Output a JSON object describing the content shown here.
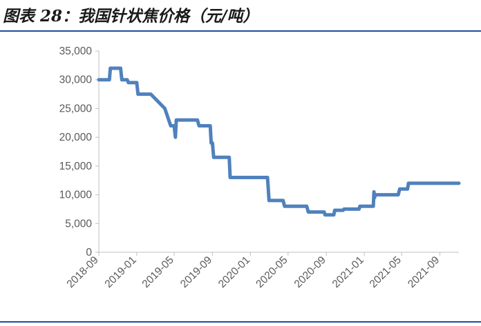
{
  "page": {
    "title": "图表 28：我国针状焦价格（元/吨）",
    "accent_color": "#1f4e9e",
    "series_color": "#4f81bd"
  },
  "chart_data": {
    "type": "line",
    "title": "",
    "xlabel": "",
    "ylabel": "",
    "ylim": [
      0,
      35000
    ],
    "y_ticks": [
      0,
      5000,
      10000,
      15000,
      20000,
      25000,
      30000,
      35000
    ],
    "y_tick_labels": [
      "0",
      "5,000",
      "10,000",
      "15,000",
      "20,000",
      "25,000",
      "30,000",
      "35,000"
    ],
    "x_range": [
      "2018-09-01",
      "2021-11-01"
    ],
    "x_ticks": [
      "2018-09-01",
      "2019-01-01",
      "2019-05-01",
      "2019-09-01",
      "2020-01-01",
      "2020-05-01",
      "2020-09-01",
      "2021-01-01",
      "2021-05-01",
      "2021-09-01"
    ],
    "x_tick_labels": [
      "2018-09",
      "2019-01",
      "2019-05",
      "2019-09",
      "2020-01",
      "2020-05",
      "2020-09",
      "2021-01",
      "2021-05",
      "2021-09"
    ],
    "grid": false,
    "legend": "none",
    "series": [
      {
        "x": [
          "2018-09-01",
          "2018-10-05",
          "2018-10-08",
          "2018-11-10",
          "2018-11-14",
          "2018-12-01",
          "2018-12-05",
          "2019-01-01",
          "2019-01-05",
          "2019-02-15",
          "2019-04-01",
          "2019-04-20",
          "2019-05-01",
          "2019-05-05",
          "2019-05-08",
          "2019-05-12",
          "2019-07-15",
          "2019-07-20",
          "2019-08-25",
          "2019-08-28",
          "2019-09-01",
          "2019-09-05",
          "2019-10-25",
          "2019-10-28",
          "2020-02-25",
          "2020-03-01",
          "2020-04-15",
          "2020-04-20",
          "2020-06-30",
          "2020-07-05",
          "2020-08-25",
          "2020-08-28",
          "2020-09-25",
          "2020-09-28",
          "2020-10-25",
          "2020-10-28",
          "2020-12-15",
          "2020-12-18",
          "2021-01-30",
          "2021-02-01",
          "2021-02-03",
          "2021-02-05",
          "2021-04-20",
          "2021-04-25",
          "2021-05-20",
          "2021-05-23",
          "2021-11-01"
        ],
        "values": [
          30000,
          30000,
          32000,
          32000,
          30000,
          30000,
          29500,
          29500,
          27500,
          27500,
          25000,
          22000,
          22000,
          20000,
          23000,
          23000,
          23000,
          22000,
          22000,
          19000,
          19000,
          16500,
          16500,
          13000,
          13000,
          9000,
          9000,
          8000,
          8000,
          7000,
          7000,
          6500,
          6500,
          7300,
          7300,
          7500,
          7500,
          8000,
          8000,
          10500,
          9500,
          10000,
          10000,
          11000,
          11000,
          12000,
          12000
        ]
      }
    ]
  }
}
